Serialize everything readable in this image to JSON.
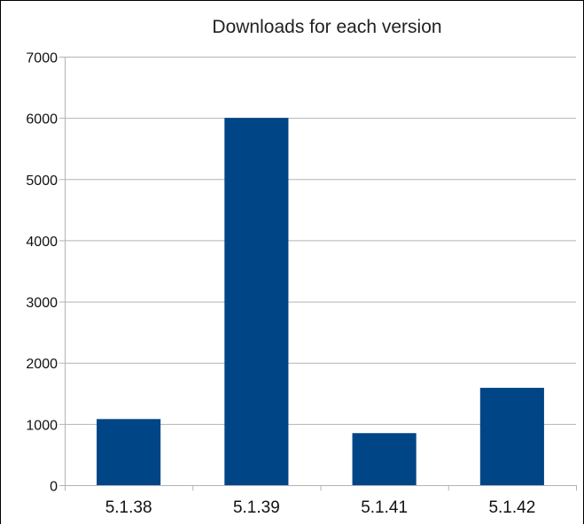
{
  "chart_data": {
    "type": "bar",
    "title": "Downloads for each version",
    "xlabel": "",
    "ylabel": "",
    "categories": [
      "5.1.38",
      "5.1.39",
      "5.1.41",
      "5.1.42"
    ],
    "values": [
      1080,
      6000,
      850,
      1590
    ],
    "ylim": [
      0,
      7000
    ],
    "yticks": [
      0,
      1000,
      2000,
      3000,
      4000,
      5000,
      6000,
      7000
    ],
    "grid": true,
    "legend": "none",
    "bar_color": "#004586",
    "grid_color": "#b3b3b3",
    "axis_color": "#b3b3b3"
  }
}
